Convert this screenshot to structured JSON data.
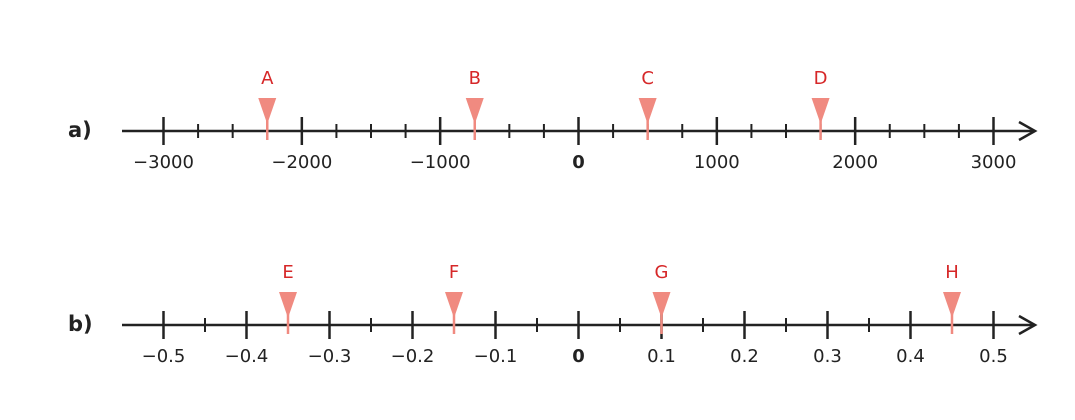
{
  "number_lines": [
    {
      "label": "a)",
      "xlim": [
        -3300,
        3300
      ],
      "ticks": [
        {
          "value": -3000,
          "label": "−3000"
        },
        {
          "value": -2000,
          "label": "−2000"
        },
        {
          "value": -1000,
          "label": "−1000"
        },
        0,
        1000,
        2000,
        3000
      ],
      "minor_ticks": [
        -2750,
        -2500,
        -2250,
        -1750,
        -1500,
        -1250,
        -750,
        -500,
        -250,
        250,
        500,
        750,
        1250,
        1500,
        1750,
        2250,
        2500,
        2750
      ],
      "markers": [
        {
          "label": "A",
          "value": -2250
        },
        {
          "label": "B",
          "value": -750
        },
        {
          "label": "C",
          "value": 500
        },
        {
          "label": "D",
          "value": 1750
        }
      ]
    },
    {
      "label": "b)",
      "xlim": [
        -0.55,
        0.55
      ],
      "ticks": [
        {
          "value": -0.5,
          "label": "−0.5"
        },
        {
          "value": -0.4,
          "label": "−0.4"
        },
        {
          "value": -0.3,
          "label": "−0.3"
        },
        {
          "value": -0.2,
          "label": "−0.2"
        },
        {
          "value": -0.1,
          "label": "−0.1"
        },
        0,
        0.1,
        0.2,
        0.3,
        0.4,
        0.5
      ],
      "minor_ticks": [
        -0.45,
        -0.35,
        -0.25,
        -0.15,
        -0.05,
        0.05,
        0.15,
        0.25,
        0.35,
        0.45
      ],
      "markers": [
        {
          "label": "E",
          "value": -0.35
        },
        {
          "label": "F",
          "value": -0.15
        },
        {
          "label": "G",
          "value": 0.1
        },
        {
          "label": "H",
          "value": 0.45
        }
      ]
    }
  ]
}
